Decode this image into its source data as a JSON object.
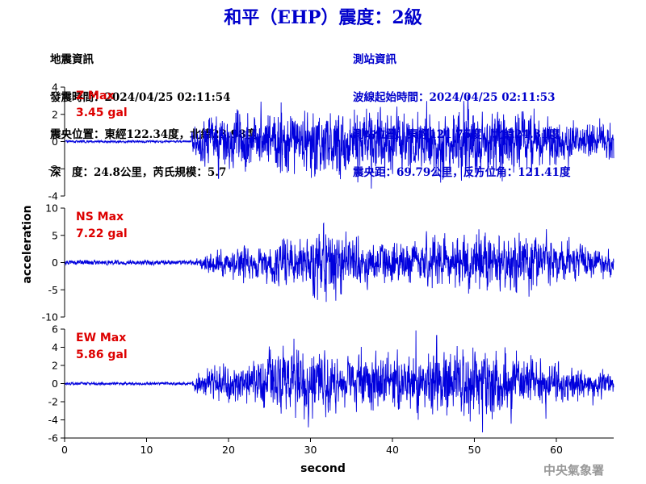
{
  "title": "和平（EHP）震度：2級",
  "quake_info": {
    "heading": "地震資訊",
    "origin_time": "發震時間：2024/04/25 02:11:54",
    "epicenter": "震央位置：東經122.34度，北緯23.98度",
    "depth_magnitude": "深　度：24.8公里，芮氏規模：5.7"
  },
  "station_info": {
    "heading": "測站資訊",
    "wave_start": "波線起始時間：2024/04/25 02:11:53",
    "location": "測站位置：東經121.75度，北緯24.31度",
    "distance": "震央距：69.79公里，反方位角：121.41度"
  },
  "footer": {
    "organization": "中央氣象署"
  },
  "colors": {
    "title": "#0000cc",
    "trace": "#0000dd",
    "peak_label": "#dd0000",
    "station_text": "#0000cc",
    "footer": "#999999"
  },
  "chart_data": [
    {
      "type": "line",
      "component": "Z",
      "max_label": "Z Max",
      "max_value": "3.45 gal",
      "peak_abs": 3.45,
      "ylim": [
        -4,
        4
      ],
      "yticks": [
        -4,
        -2,
        0,
        2,
        4
      ],
      "xlim": [
        0,
        67
      ],
      "onset_s": 15.5,
      "noise_level": 0.05,
      "envelope_s": [
        15.5,
        17,
        20,
        26,
        33,
        38,
        45,
        54,
        60,
        66
      ],
      "envelope_amp": [
        0.8,
        1.3,
        1.3,
        1.6,
        1.6,
        1.5,
        1.6,
        1.7,
        1.1,
        0.8
      ],
      "series": [
        {
          "values": []
        }
      ]
    },
    {
      "type": "line",
      "component": "NS",
      "max_label": "NS Max",
      "max_value": "7.22 gal",
      "peak_abs": 7.22,
      "ylim": [
        -10,
        10
      ],
      "yticks": [
        -10,
        -5,
        0,
        5,
        10
      ],
      "xlim": [
        0,
        67
      ],
      "onset_s": 16,
      "noise_level": 0.15,
      "envelope_s": [
        16,
        18,
        22,
        26,
        30,
        32.5,
        34.5,
        37,
        45,
        52,
        56,
        62,
        66
      ],
      "envelope_amp": [
        0.3,
        0.9,
        1.2,
        1.5,
        2.2,
        3.4,
        2.0,
        1.4,
        1.8,
        2.0,
        2.0,
        1.3,
        0.8
      ],
      "series": [
        {
          "values": []
        }
      ]
    },
    {
      "type": "line",
      "component": "EW",
      "max_label": "EW Max",
      "max_value": "5.86 gal",
      "peak_abs": 5.86,
      "ylim": [
        -6,
        6
      ],
      "yticks": [
        -6,
        -4,
        -2,
        0,
        2,
        4,
        6
      ],
      "xlim": [
        0,
        67
      ],
      "xticks": [
        0,
        10,
        20,
        30,
        40,
        50,
        60
      ],
      "xlabel": "second",
      "onset_s": 15.5,
      "noise_level": 0.08,
      "envelope_s": [
        15.5,
        18,
        22,
        26,
        28,
        32,
        36,
        42,
        50,
        54,
        60,
        66
      ],
      "envelope_amp": [
        0.4,
        1.1,
        1.2,
        2.5,
        2.6,
        2.0,
        1.8,
        2.0,
        2.5,
        2.2,
        1.3,
        0.8
      ],
      "series": [
        {
          "values": []
        }
      ]
    }
  ],
  "shared_ylabel": "acceleration"
}
